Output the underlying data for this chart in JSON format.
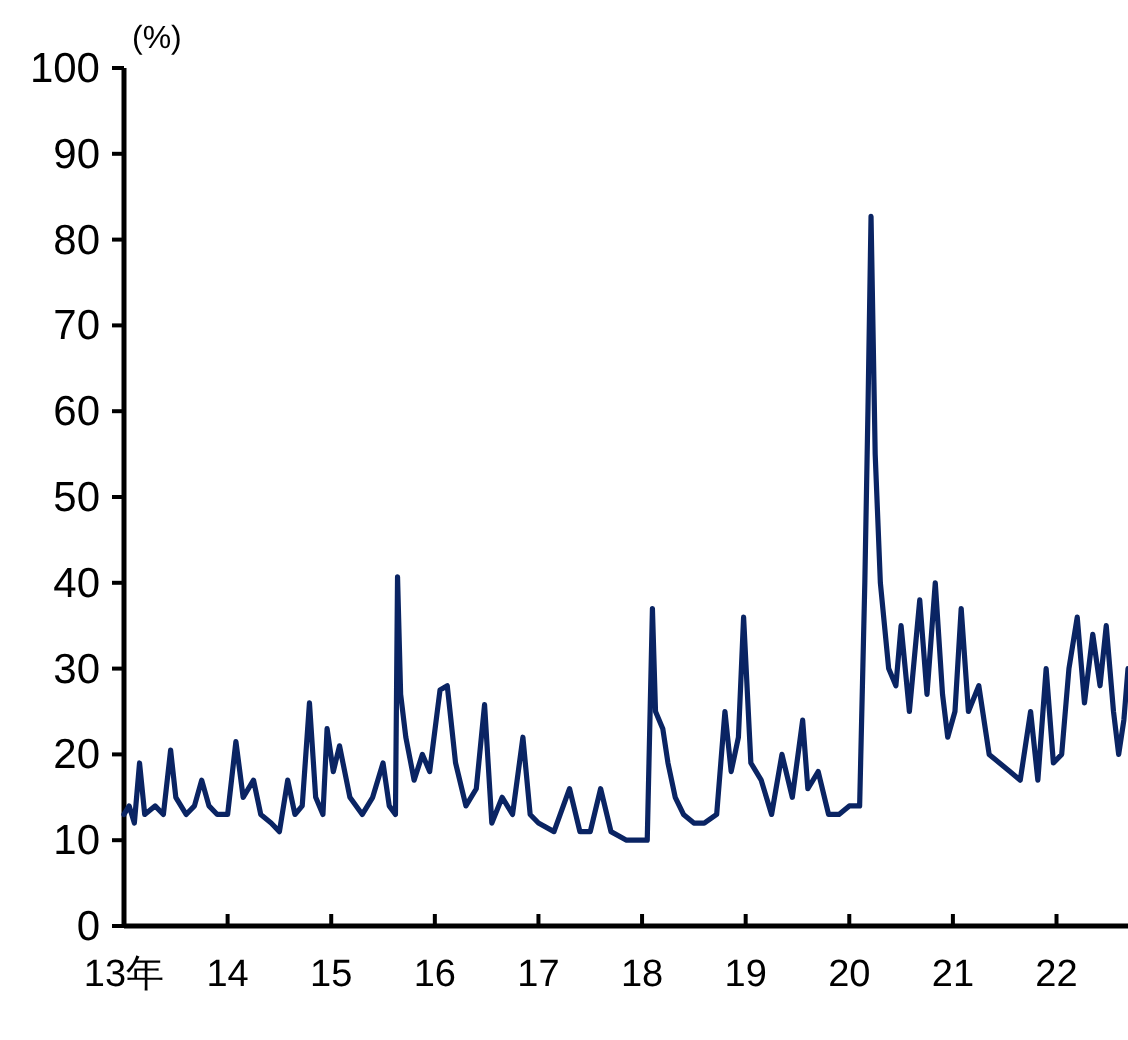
{
  "chart_data": {
    "type": "line",
    "ylabel": "(%)",
    "xlim": [
      13,
      22.69
    ],
    "ylim": [
      0,
      100
    ],
    "yticks": [
      0,
      10,
      20,
      30,
      40,
      50,
      60,
      70,
      80,
      90,
      100
    ],
    "xticks": [
      {
        "value": 13,
        "label": "13年"
      },
      14,
      15,
      16,
      17,
      18,
      19,
      20,
      21,
      22
    ],
    "x": [
      13.0,
      13.05,
      13.1,
      13.15,
      13.2,
      13.3,
      13.38,
      13.45,
      13.5,
      13.6,
      13.68,
      13.75,
      13.82,
      13.9,
      14.0,
      14.08,
      14.15,
      14.25,
      14.32,
      14.42,
      14.5,
      14.58,
      14.65,
      14.72,
      14.79,
      14.85,
      14.92,
      14.96,
      15.02,
      15.08,
      15.18,
      15.3,
      15.4,
      15.5,
      15.56,
      15.62,
      15.64,
      15.67,
      15.72,
      15.8,
      15.88,
      15.95,
      16.05,
      16.12,
      16.2,
      16.3,
      16.4,
      16.48,
      16.55,
      16.65,
      16.75,
      16.85,
      16.92,
      17.0,
      17.15,
      17.3,
      17.4,
      17.5,
      17.6,
      17.7,
      17.85,
      17.95,
      18.05,
      18.1,
      18.13,
      18.2,
      18.25,
      18.32,
      18.4,
      18.5,
      18.6,
      18.72,
      18.8,
      18.86,
      18.93,
      18.98,
      19.05,
      19.15,
      19.25,
      19.35,
      19.45,
      19.55,
      19.6,
      19.7,
      19.8,
      19.9,
      20.0,
      20.1,
      20.15,
      20.18,
      20.21,
      20.25,
      20.3,
      20.38,
      20.45,
      20.5,
      20.58,
      20.68,
      20.75,
      20.83,
      20.9,
      20.95,
      21.02,
      21.08,
      21.15,
      21.25,
      21.35,
      21.45,
      21.55,
      21.65,
      21.75,
      21.82,
      21.9,
      21.97,
      22.05,
      22.12,
      22.2,
      22.27,
      22.35,
      22.42,
      22.48,
      22.55,
      22.6,
      22.65,
      22.69
    ],
    "series": [
      {
        "color": "#0a2463",
        "values": [
          13,
          14,
          12,
          19,
          13,
          14,
          13,
          20.5,
          15,
          13,
          14,
          17,
          14,
          13,
          13,
          21.5,
          15,
          17,
          13,
          12,
          11,
          17,
          13,
          14,
          26,
          15,
          13,
          23,
          18,
          21,
          15,
          13,
          15,
          19,
          14,
          13,
          40.7,
          27,
          22,
          17,
          20,
          18,
          27.5,
          28,
          19,
          14,
          16,
          25.8,
          12,
          15,
          13,
          22,
          13,
          12,
          11,
          16,
          11,
          11,
          16,
          11,
          10,
          10,
          10,
          37,
          25,
          23,
          19,
          15,
          13,
          12,
          12,
          13,
          25,
          18,
          22,
          36,
          19,
          17,
          13,
          20,
          15,
          24,
          16,
          18,
          13,
          13,
          14,
          14,
          40,
          60,
          82.7,
          55,
          40,
          30,
          28,
          35,
          25,
          38,
          27,
          40,
          27,
          22,
          25,
          37,
          25,
          28,
          20,
          19,
          18,
          17,
          25,
          17,
          30,
          19,
          20,
          30,
          36,
          26,
          34,
          28,
          35,
          25,
          20,
          24,
          30
        ]
      }
    ]
  }
}
